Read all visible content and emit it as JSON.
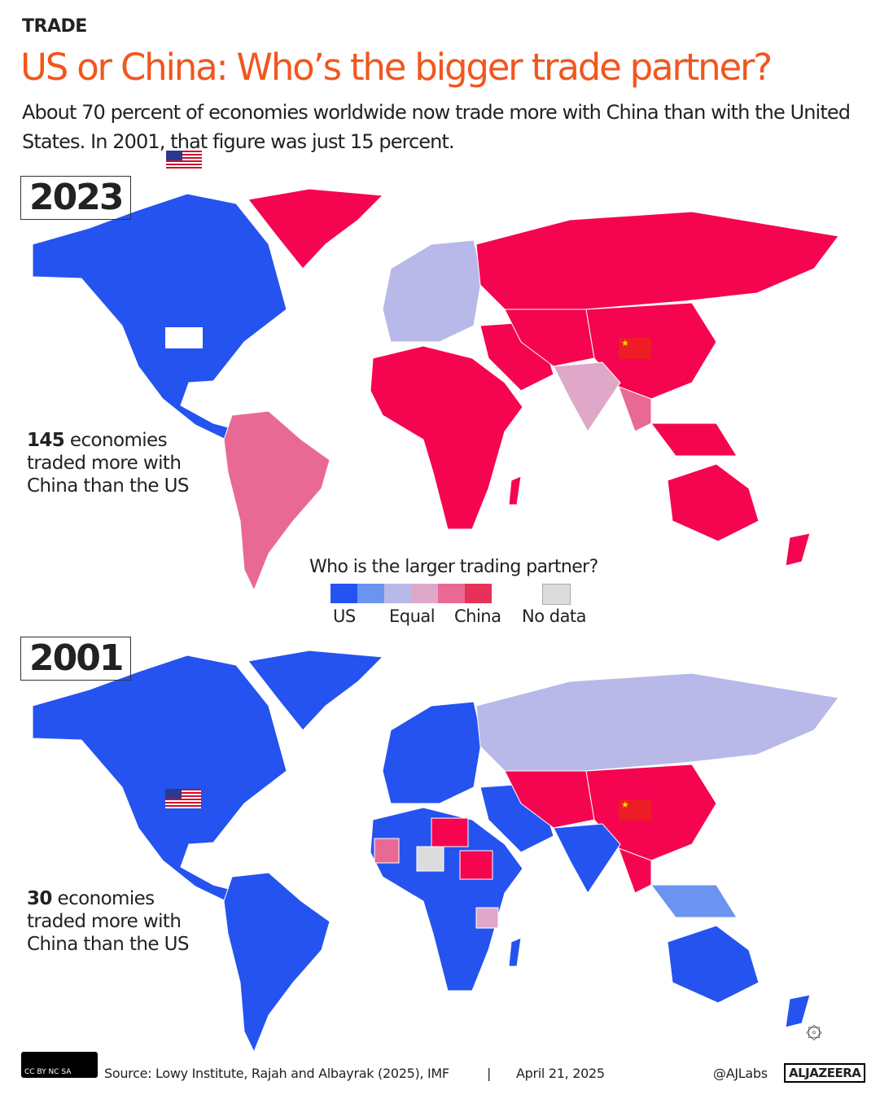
{
  "header": {
    "kicker": "TRADE",
    "title": "US or China: Who’s the bigger trade partner?",
    "subtitle": "About 70 percent of economies worldwide now trade more with China than with the United States. In 2001, that figure was just 15 percent."
  },
  "maps": [
    {
      "year": "2023",
      "count": "145",
      "annotation_rest": " economies traded more with China than the US"
    },
    {
      "year": "2001",
      "count": "30",
      "annotation_rest": " economies traded more with China than the US"
    }
  ],
  "legend": {
    "title": "Who is the larger trading partner?",
    "labels": {
      "us": "US",
      "equal": "Equal",
      "china": "China",
      "no_data": "No data"
    },
    "colors": [
      "#2553f0",
      "#6b93f0",
      "#b8b9e8",
      "#dfa8c8",
      "#e86a94",
      "#e63158"
    ],
    "no_data_color": "#dcdcdc"
  },
  "footer": {
    "license": "CC BY NC SA",
    "source": "Source:  Lowy Institute, Rajah and Albayrak (2025), IMF",
    "separator": "|",
    "date": "April 21, 2025",
    "handle": "@AJLabs",
    "brand": "ALJAZEERA"
  }
}
